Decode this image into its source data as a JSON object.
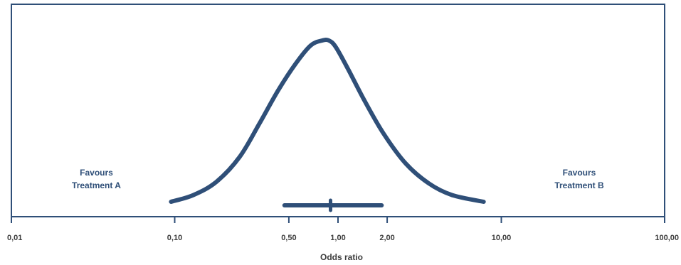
{
  "chart_data": {
    "type": "line",
    "xlabel": "Odds ratio",
    "xscale": "log",
    "xlim": [
      0.01,
      100
    ],
    "x_ticks": [
      0.01,
      0.1,
      0.5,
      1,
      2,
      10,
      100
    ],
    "x_tick_labels": [
      "0,01",
      "0,10",
      "0,50",
      "1,00",
      "2,00",
      "10,00",
      "100,00"
    ],
    "grid": false,
    "series": [
      {
        "kind": "density-curve",
        "color": "#2f4f78",
        "x": [
          0.095,
          0.13,
          0.18,
          0.25,
          0.33,
          0.43,
          0.55,
          0.68,
          0.8,
          0.88,
          0.97,
          1.15,
          1.45,
          1.9,
          2.6,
          3.6,
          5.0,
          7.8
        ],
        "y": [
          0.03,
          0.07,
          0.15,
          0.3,
          0.5,
          0.7,
          0.86,
          0.97,
          1.0,
          1.0,
          0.96,
          0.83,
          0.64,
          0.44,
          0.26,
          0.14,
          0.07,
          0.03
        ]
      }
    ],
    "interval": {
      "point": 0.9,
      "lower": 0.47,
      "upper": 1.85,
      "color": "#2f4f78"
    },
    "annotations": [
      {
        "text": [
          "Favours",
          "Treatment A"
        ],
        "x": 0.03
      },
      {
        "text": [
          "Favours",
          "Treatment B"
        ],
        "x": 30
      }
    ]
  }
}
